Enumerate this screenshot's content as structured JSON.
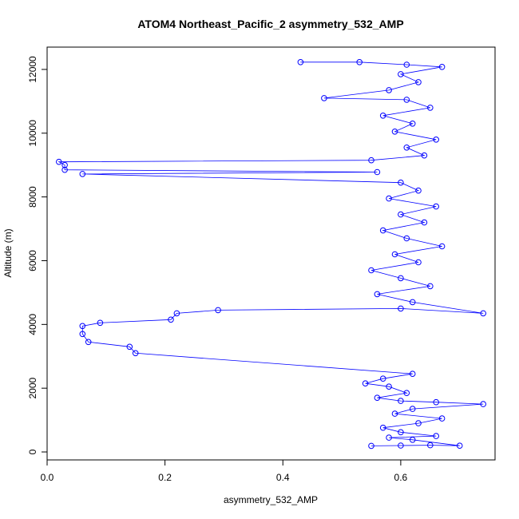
{
  "chart_data": {
    "type": "scatter",
    "title": "ATOM4 Northeast_Pacific_2 asymmetry_532_AMP",
    "xlabel": "asymmetry_532_AMP",
    "ylabel": "Altitude (m)",
    "xlim": [
      0.0,
      0.76
    ],
    "ylim": [
      -250,
      12700
    ],
    "xticks": [
      {
        "value": 0.0,
        "label": "0.0"
      },
      {
        "value": 0.2,
        "label": "0.2"
      },
      {
        "value": 0.4,
        "label": "0.4"
      },
      {
        "value": 0.6,
        "label": "0.6"
      }
    ],
    "yticks": [
      {
        "value": 0,
        "label": "0"
      },
      {
        "value": 2000,
        "label": "2000"
      },
      {
        "value": 4000,
        "label": "4000"
      },
      {
        "value": 6000,
        "label": "6000"
      },
      {
        "value": 8000,
        "label": "8000"
      },
      {
        "value": 10000,
        "label": "10000"
      },
      {
        "value": 12000,
        "label": "12000"
      }
    ],
    "series_color": "#0000ff",
    "marker": "open-circle",
    "connected": true,
    "points": [
      [
        0.55,
        190
      ],
      [
        0.6,
        200
      ],
      [
        0.65,
        210
      ],
      [
        0.7,
        195
      ],
      [
        0.62,
        380
      ],
      [
        0.58,
        450
      ],
      [
        0.66,
        500
      ],
      [
        0.6,
        620
      ],
      [
        0.57,
        760
      ],
      [
        0.63,
        900
      ],
      [
        0.67,
        1050
      ],
      [
        0.59,
        1200
      ],
      [
        0.62,
        1350
      ],
      [
        0.74,
        1500
      ],
      [
        0.66,
        1560
      ],
      [
        0.6,
        1600
      ],
      [
        0.56,
        1700
      ],
      [
        0.61,
        1850
      ],
      [
        0.58,
        2050
      ],
      [
        0.54,
        2150
      ],
      [
        0.57,
        2300
      ],
      [
        0.62,
        2450
      ],
      [
        0.15,
        3100
      ],
      [
        0.14,
        3300
      ],
      [
        0.07,
        3450
      ],
      [
        0.06,
        3700
      ],
      [
        0.06,
        3950
      ],
      [
        0.09,
        4050
      ],
      [
        0.21,
        4150
      ],
      [
        0.22,
        4350
      ],
      [
        0.29,
        4450
      ],
      [
        0.6,
        4500
      ],
      [
        0.74,
        4350
      ],
      [
        0.62,
        4700
      ],
      [
        0.56,
        4950
      ],
      [
        0.65,
        5200
      ],
      [
        0.6,
        5450
      ],
      [
        0.55,
        5700
      ],
      [
        0.63,
        5950
      ],
      [
        0.59,
        6200
      ],
      [
        0.67,
        6450
      ],
      [
        0.61,
        6700
      ],
      [
        0.57,
        6950
      ],
      [
        0.64,
        7200
      ],
      [
        0.6,
        7450
      ],
      [
        0.66,
        7700
      ],
      [
        0.58,
        7950
      ],
      [
        0.63,
        8200
      ],
      [
        0.6,
        8450
      ],
      [
        0.06,
        8720
      ],
      [
        0.56,
        8780
      ],
      [
        0.03,
        8850
      ],
      [
        0.03,
        9000
      ],
      [
        0.02,
        9100
      ],
      [
        0.55,
        9150
      ],
      [
        0.64,
        9300
      ],
      [
        0.61,
        9550
      ],
      [
        0.66,
        9800
      ],
      [
        0.59,
        10050
      ],
      [
        0.62,
        10300
      ],
      [
        0.57,
        10550
      ],
      [
        0.65,
        10800
      ],
      [
        0.61,
        11050
      ],
      [
        0.47,
        11100
      ],
      [
        0.58,
        11350
      ],
      [
        0.63,
        11600
      ],
      [
        0.6,
        11850
      ],
      [
        0.67,
        12080
      ],
      [
        0.61,
        12150
      ],
      [
        0.53,
        12230
      ],
      [
        0.43,
        12230
      ]
    ]
  }
}
